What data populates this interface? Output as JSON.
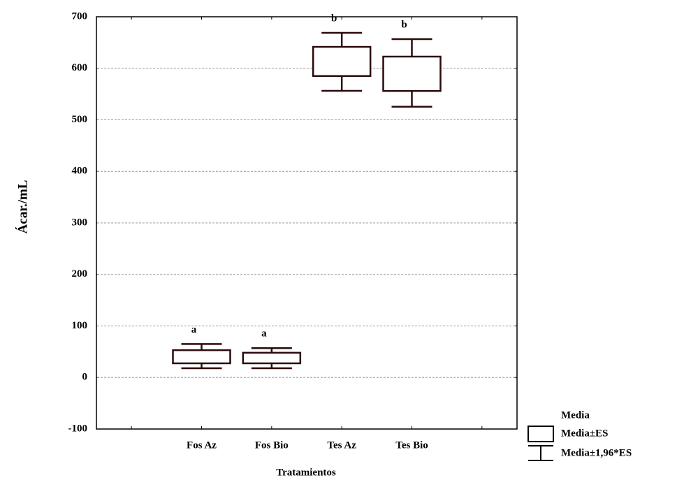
{
  "chart_data": {
    "type": "box",
    "y_label": "Ácar./mL",
    "x_label": "Tratamientos",
    "categories": [
      "Fos Az",
      "Fos Bio",
      "Tes Az",
      "Tes Bio"
    ],
    "box_low": [
      27.5,
      27.5,
      585,
      556
    ],
    "box_high": [
      53,
      48,
      641.6,
      622.7
    ],
    "whisker_low": [
      18,
      18,
      556.3,
      525.4
    ],
    "whisker_high": [
      65,
      57,
      668.8,
      656.6
    ],
    "group_labels": [
      "a",
      "a",
      "b",
      "b"
    ],
    "color": "#2a0a0a",
    "ylim": [
      -100,
      700
    ],
    "yticks": [
      -100,
      0,
      100,
      200,
      300,
      400,
      500,
      600,
      700
    ],
    "grid": true,
    "legend": [
      "Media",
      "Media±ES",
      "Media±1,96*ES"
    ],
    "legend_position": "bottom-right"
  }
}
